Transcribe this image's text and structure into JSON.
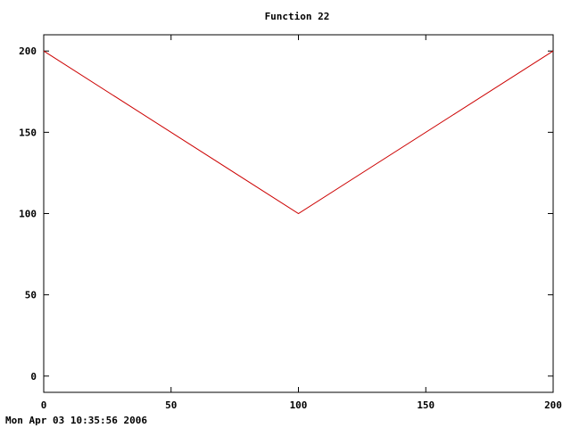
{
  "chart_data": {
    "type": "line",
    "title": "Function 22",
    "xlabel": "",
    "ylabel": "",
    "xlim": [
      0,
      200
    ],
    "ylim": [
      -10,
      210
    ],
    "xticks": [
      0,
      50,
      100,
      150,
      200
    ],
    "yticks": [
      0,
      50,
      100,
      150,
      200
    ],
    "grid": false,
    "series": [
      {
        "color": "#cc0000",
        "x": [
          0,
          100,
          200
        ],
        "y": [
          200,
          100,
          200
        ]
      }
    ]
  },
  "footer": {
    "timestamp": "Mon Apr 03 10:35:56 2006"
  }
}
